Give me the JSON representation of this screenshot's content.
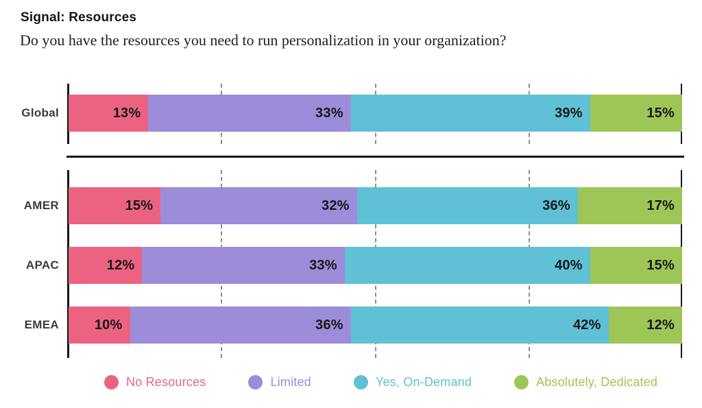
{
  "header": {
    "title": "Signal: Resources",
    "question": "Do you have the resources you need to run personalization in your organization?"
  },
  "chart_data": {
    "type": "bar",
    "variant": "horizontal-stacked",
    "unit": "%",
    "xlim": [
      0,
      100
    ],
    "gridlines_pct": [
      25,
      50,
      75
    ],
    "grid_style": "dashed",
    "legend_position": "bottom",
    "categories": [
      "Global",
      "AMER",
      "APAC",
      "EMEA"
    ],
    "groups": [
      [
        "Global"
      ],
      [
        "AMER",
        "APAC",
        "EMEA"
      ]
    ],
    "series": [
      {
        "name": "No Resources",
        "color": "#EC6381",
        "values": [
          13,
          15,
          12,
          10
        ]
      },
      {
        "name": "Limited",
        "color": "#9C8CDA",
        "values": [
          33,
          32,
          33,
          36
        ]
      },
      {
        "name": "Yes, On-Demand",
        "color": "#5FC0D6",
        "values": [
          39,
          36,
          40,
          42
        ]
      },
      {
        "name": "Absolutely, Dedicated",
        "color": "#9EC656",
        "values": [
          15,
          17,
          15,
          12
        ]
      }
    ]
  }
}
